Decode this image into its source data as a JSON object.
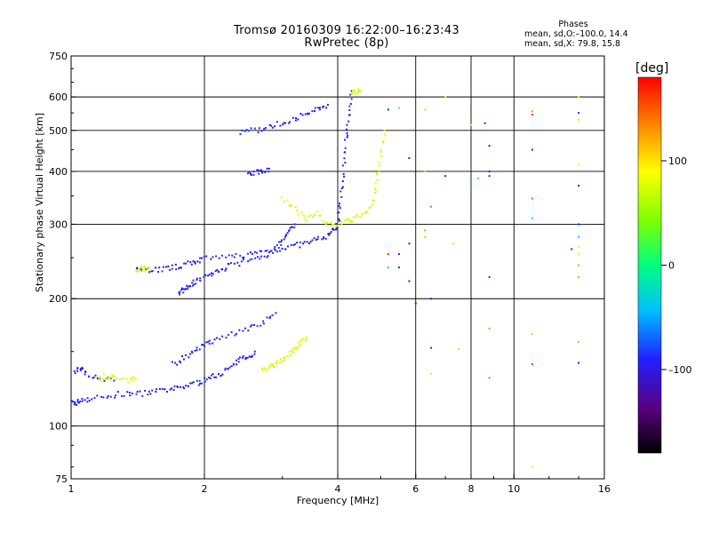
{
  "header": {
    "title_line1": "Tromsø 20160309 16:22:00–16:23:43",
    "title_line2": "RwPretec (8p)"
  },
  "stats": {
    "heading": "Phases",
    "line1": "mean, sd,O:–100.0, 14.4",
    "line2": "mean, sd,X:  79.8, 15.8"
  },
  "colorbar": {
    "unit": "[deg]",
    "ticks": [
      {
        "value": 100,
        "label": "100"
      },
      {
        "value": 0,
        "label": "0"
      },
      {
        "value": -100,
        "label": "–100"
      }
    ],
    "range": [
      -180,
      180
    ]
  },
  "chart_data": {
    "type": "scatter",
    "xscale": "log",
    "yscale": "log",
    "xlabel": "Frequency [MHz]",
    "ylabel": "Stationary phase Virtual Height [km]",
    "xlim": [
      1,
      16
    ],
    "ylim": [
      75,
      750
    ],
    "grid": true,
    "xticks": [
      {
        "value": 1,
        "label": "1"
      },
      {
        "value": 2,
        "label": "2"
      },
      {
        "value": 4,
        "label": "4"
      },
      {
        "value": 6,
        "label": "6"
      },
      {
        "value": 8,
        "label": "8"
      },
      {
        "value": 10,
        "label": "10"
      },
      {
        "value": 16,
        "label": "16"
      }
    ],
    "xgrid": [
      2,
      4,
      6,
      8,
      10
    ],
    "yticks": [
      {
        "value": 75,
        "label": "75"
      },
      {
        "value": 100,
        "label": "100"
      },
      {
        "value": 200,
        "label": "200"
      },
      {
        "value": 300,
        "label": "300"
      },
      {
        "value": 400,
        "label": "400"
      },
      {
        "value": 500,
        "label": "500"
      },
      {
        "value": 600,
        "label": "600"
      },
      {
        "value": 750,
        "label": "750"
      }
    ],
    "ygrid": [
      100,
      200,
      300,
      400,
      500,
      600
    ],
    "traces": [
      {
        "phase": -100,
        "points": [
          [
            1.0,
            114
          ],
          [
            1.02,
            113
          ],
          [
            1.05,
            115
          ],
          [
            1.1,
            116
          ],
          [
            1.2,
            117
          ],
          [
            1.3,
            119
          ],
          [
            1.4,
            119
          ],
          [
            1.5,
            120
          ],
          [
            1.6,
            121
          ],
          [
            1.7,
            122
          ],
          [
            1.8,
            124
          ],
          [
            1.9,
            126
          ],
          [
            2.0,
            128
          ],
          [
            2.1,
            131
          ],
          [
            2.2,
            134
          ],
          [
            2.3,
            138
          ],
          [
            2.4,
            143
          ],
          [
            2.5,
            146
          ],
          [
            2.6,
            150
          ]
        ]
      },
      {
        "phase": -100,
        "points": [
          [
            1.4,
            235
          ],
          [
            1.5,
            234
          ],
          [
            1.6,
            235
          ],
          [
            1.7,
            237
          ],
          [
            1.8,
            240
          ],
          [
            1.9,
            245
          ],
          [
            2.0,
            248
          ],
          [
            2.2,
            250
          ],
          [
            2.4,
            253
          ],
          [
            2.6,
            256
          ],
          [
            2.8,
            260
          ],
          [
            3.0,
            263
          ],
          [
            3.2,
            267
          ],
          [
            3.4,
            271
          ],
          [
            3.6,
            276
          ],
          [
            3.8,
            282
          ],
          [
            3.9,
            290
          ],
          [
            4.0,
            300
          ],
          [
            4.05,
            330
          ],
          [
            4.1,
            380
          ],
          [
            4.15,
            440
          ],
          [
            4.2,
            500
          ],
          [
            4.25,
            560
          ],
          [
            4.3,
            620
          ]
        ]
      },
      {
        "phase": -100,
        "points": [
          [
            2.4,
            495
          ],
          [
            2.6,
            500
          ],
          [
            2.8,
            510
          ],
          [
            3.0,
            520
          ],
          [
            3.2,
            535
          ],
          [
            3.4,
            545
          ],
          [
            3.6,
            560
          ],
          [
            3.8,
            575
          ]
        ]
      },
      {
        "phase": -100,
        "points": [
          [
            2.5,
            395
          ],
          [
            2.6,
            398
          ],
          [
            2.7,
            402
          ],
          [
            2.8,
            406
          ]
        ]
      },
      {
        "phase": -100,
        "points": [
          [
            1.75,
            205
          ],
          [
            1.8,
            210
          ],
          [
            1.85,
            215
          ],
          [
            1.9,
            220
          ],
          [
            2.0,
            225
          ],
          [
            2.1,
            230
          ],
          [
            2.2,
            235
          ],
          [
            2.3,
            240
          ],
          [
            2.5,
            245
          ],
          [
            2.7,
            250
          ],
          [
            2.9,
            262
          ],
          [
            3.0,
            275
          ],
          [
            3.1,
            290
          ],
          [
            3.2,
            300
          ]
        ]
      },
      {
        "phase": -100,
        "points": [
          [
            1.7,
            140
          ],
          [
            1.8,
            145
          ],
          [
            1.9,
            150
          ],
          [
            2.0,
            155
          ],
          [
            2.1,
            160
          ],
          [
            2.3,
            165
          ],
          [
            2.5,
            170
          ],
          [
            2.7,
            175
          ],
          [
            2.9,
            185
          ]
        ]
      },
      {
        "phase": -100,
        "points": [
          [
            1.02,
            135
          ],
          [
            1.05,
            137
          ],
          [
            1.08,
            133
          ],
          [
            1.15,
            130
          ],
          [
            1.25,
            128
          ]
        ]
      },
      {
        "phase": 80,
        "points": [
          [
            3.0,
            345
          ],
          [
            3.2,
            325
          ],
          [
            3.4,
            310
          ],
          [
            3.6,
            320
          ],
          [
            3.8,
            300
          ],
          [
            4.0,
            300
          ],
          [
            4.2,
            305
          ],
          [
            4.4,
            310
          ],
          [
            4.6,
            320
          ],
          [
            4.8,
            340
          ],
          [
            4.9,
            380
          ],
          [
            5.0,
            430
          ],
          [
            5.1,
            500
          ]
        ]
      },
      {
        "phase": 80,
        "points": [
          [
            2.7,
            135
          ],
          [
            2.8,
            138
          ],
          [
            2.9,
            140
          ],
          [
            3.0,
            143
          ],
          [
            3.1,
            148
          ],
          [
            3.2,
            152
          ],
          [
            3.3,
            158
          ],
          [
            3.4,
            162
          ]
        ]
      },
      {
        "phase": 80,
        "points": [
          [
            1.15,
            130
          ],
          [
            1.2,
            131
          ],
          [
            1.25,
            130
          ],
          [
            1.35,
            128
          ],
          [
            1.4,
            129
          ]
        ]
      },
      {
        "phase": 80,
        "points": [
          [
            1.4,
            235
          ],
          [
            1.45,
            236
          ],
          [
            1.5,
            237
          ]
        ]
      },
      {
        "phase": 80,
        "points": [
          [
            4.3,
            615
          ],
          [
            4.4,
            615
          ],
          [
            4.5,
            620
          ]
        ]
      }
    ],
    "scatter": [
      {
        "x": 5.2,
        "y": 560,
        "phase": -100
      },
      {
        "x": 5.5,
        "y": 565,
        "phase": 20
      },
      {
        "x": 6.3,
        "y": 560,
        "phase": 60
      },
      {
        "x": 7.0,
        "y": 600,
        "phase": 100
      },
      {
        "x": 8.0,
        "y": 515,
        "phase": 80
      },
      {
        "x": 8.6,
        "y": 520,
        "phase": -100
      },
      {
        "x": 11.0,
        "y": 545,
        "phase": 160
      },
      {
        "x": 11.0,
        "y": 555,
        "phase": 130
      },
      {
        "x": 14.0,
        "y": 550,
        "phase": -100
      },
      {
        "x": 14.0,
        "y": 530,
        "phase": 110
      },
      {
        "x": 14.0,
        "y": 600,
        "phase": 100
      },
      {
        "x": 5.8,
        "y": 430,
        "phase": -100
      },
      {
        "x": 6.3,
        "y": 400,
        "phase": 60
      },
      {
        "x": 7.0,
        "y": 390,
        "phase": -100
      },
      {
        "x": 8.3,
        "y": 385,
        "phase": 20
      },
      {
        "x": 8.8,
        "y": 400,
        "phase": -100
      },
      {
        "x": 8.8,
        "y": 390,
        "phase": -100
      },
      {
        "x": 8.8,
        "y": 460,
        "phase": -100
      },
      {
        "x": 11.0,
        "y": 450,
        "phase": -110
      },
      {
        "x": 14.0,
        "y": 415,
        "phase": 100
      },
      {
        "x": 14.0,
        "y": 370,
        "phase": -100
      },
      {
        "x": 11.0,
        "y": 345,
        "phase": 150
      },
      {
        "x": 11.0,
        "y": 310,
        "phase": -20
      },
      {
        "x": 6.5,
        "y": 330,
        "phase": -40
      },
      {
        "x": 6.3,
        "y": 290,
        "phase": 130
      },
      {
        "x": 6.3,
        "y": 280,
        "phase": 120
      },
      {
        "x": 7.3,
        "y": 270,
        "phase": 110
      },
      {
        "x": 5.2,
        "y": 255,
        "phase": 160
      },
      {
        "x": 5.5,
        "y": 255,
        "phase": -100
      },
      {
        "x": 5.8,
        "y": 270,
        "phase": -100
      },
      {
        "x": 14.0,
        "y": 300,
        "phase": -100
      },
      {
        "x": 14.0,
        "y": 280,
        "phase": -40
      },
      {
        "x": 14.0,
        "y": 265,
        "phase": 100
      },
      {
        "x": 14.0,
        "y": 255,
        "phase": 90
      },
      {
        "x": 14.0,
        "y": 240,
        "phase": 130
      },
      {
        "x": 14.0,
        "y": 225,
        "phase": 130
      },
      {
        "x": 13.5,
        "y": 262,
        "phase": -100
      },
      {
        "x": 5.2,
        "y": 237,
        "phase": -20
      },
      {
        "x": 5.5,
        "y": 237,
        "phase": -100
      },
      {
        "x": 5.8,
        "y": 220,
        "phase": -100
      },
      {
        "x": 6.5,
        "y": 200,
        "phase": -100
      },
      {
        "x": 8.8,
        "y": 225,
        "phase": -100
      },
      {
        "x": 6.0,
        "y": 195,
        "phase": -100
      },
      {
        "x": 6.5,
        "y": 153,
        "phase": -100
      },
      {
        "x": 7.5,
        "y": 152,
        "phase": 110
      },
      {
        "x": 8.8,
        "y": 170,
        "phase": 130
      },
      {
        "x": 11.0,
        "y": 165,
        "phase": 110
      },
      {
        "x": 14.0,
        "y": 158,
        "phase": 40
      },
      {
        "x": 11.0,
        "y": 140,
        "phase": 160
      },
      {
        "x": 14.0,
        "y": 141,
        "phase": -100
      },
      {
        "x": 8.8,
        "y": 130,
        "phase": -40
      },
      {
        "x": 6.5,
        "y": 133,
        "phase": 110
      },
      {
        "x": 11.0,
        "y": 80,
        "phase": 100
      }
    ]
  }
}
